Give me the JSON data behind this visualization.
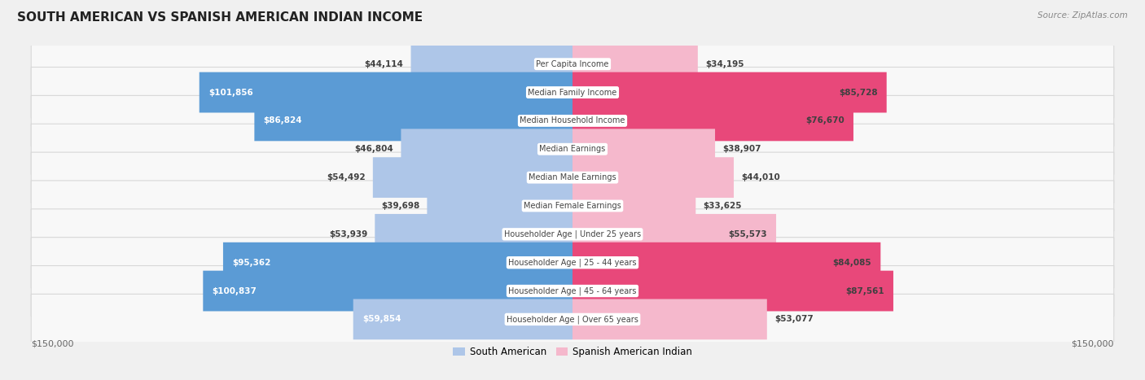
{
  "title": "SOUTH AMERICAN VS SPANISH AMERICAN INDIAN INCOME",
  "source": "Source: ZipAtlas.com",
  "categories": [
    "Per Capita Income",
    "Median Family Income",
    "Median Household Income",
    "Median Earnings",
    "Median Male Earnings",
    "Median Female Earnings",
    "Householder Age | Under 25 years",
    "Householder Age | 25 - 44 years",
    "Householder Age | 45 - 64 years",
    "Householder Age | Over 65 years"
  ],
  "south_american": [
    44114,
    101856,
    86824,
    46804,
    54492,
    39698,
    53939,
    95362,
    100837,
    59854
  ],
  "spanish_american_indian": [
    34195,
    85728,
    76670,
    38907,
    44010,
    33625,
    55573,
    84085,
    87561,
    53077
  ],
  "south_american_labels": [
    "$44,114",
    "$101,856",
    "$86,824",
    "$46,804",
    "$54,492",
    "$39,698",
    "$53,939",
    "$95,362",
    "$100,837",
    "$59,854"
  ],
  "spanish_american_labels": [
    "$34,195",
    "$85,728",
    "$76,670",
    "$38,907",
    "$44,010",
    "$33,625",
    "$55,573",
    "$84,085",
    "$87,561",
    "$53,077"
  ],
  "color_sa_light": "#aec6e8",
  "color_sa_dark": "#5b9bd5",
  "color_sai_light": "#f5b8cc",
  "color_sai_dark": "#e8487a",
  "sa_dark_threshold": 70000,
  "sai_dark_threshold": 70000,
  "max_val": 150000,
  "bg_color": "#f0f0f0",
  "row_bg_color": "#f8f8f8",
  "row_border_color": "#d8d8d8",
  "label_text_dark": "#404040",
  "label_text_white": "#ffffff",
  "inside_label_threshold": 55000,
  "legend_label_sa": "South American",
  "legend_label_sai": "Spanish American Indian"
}
